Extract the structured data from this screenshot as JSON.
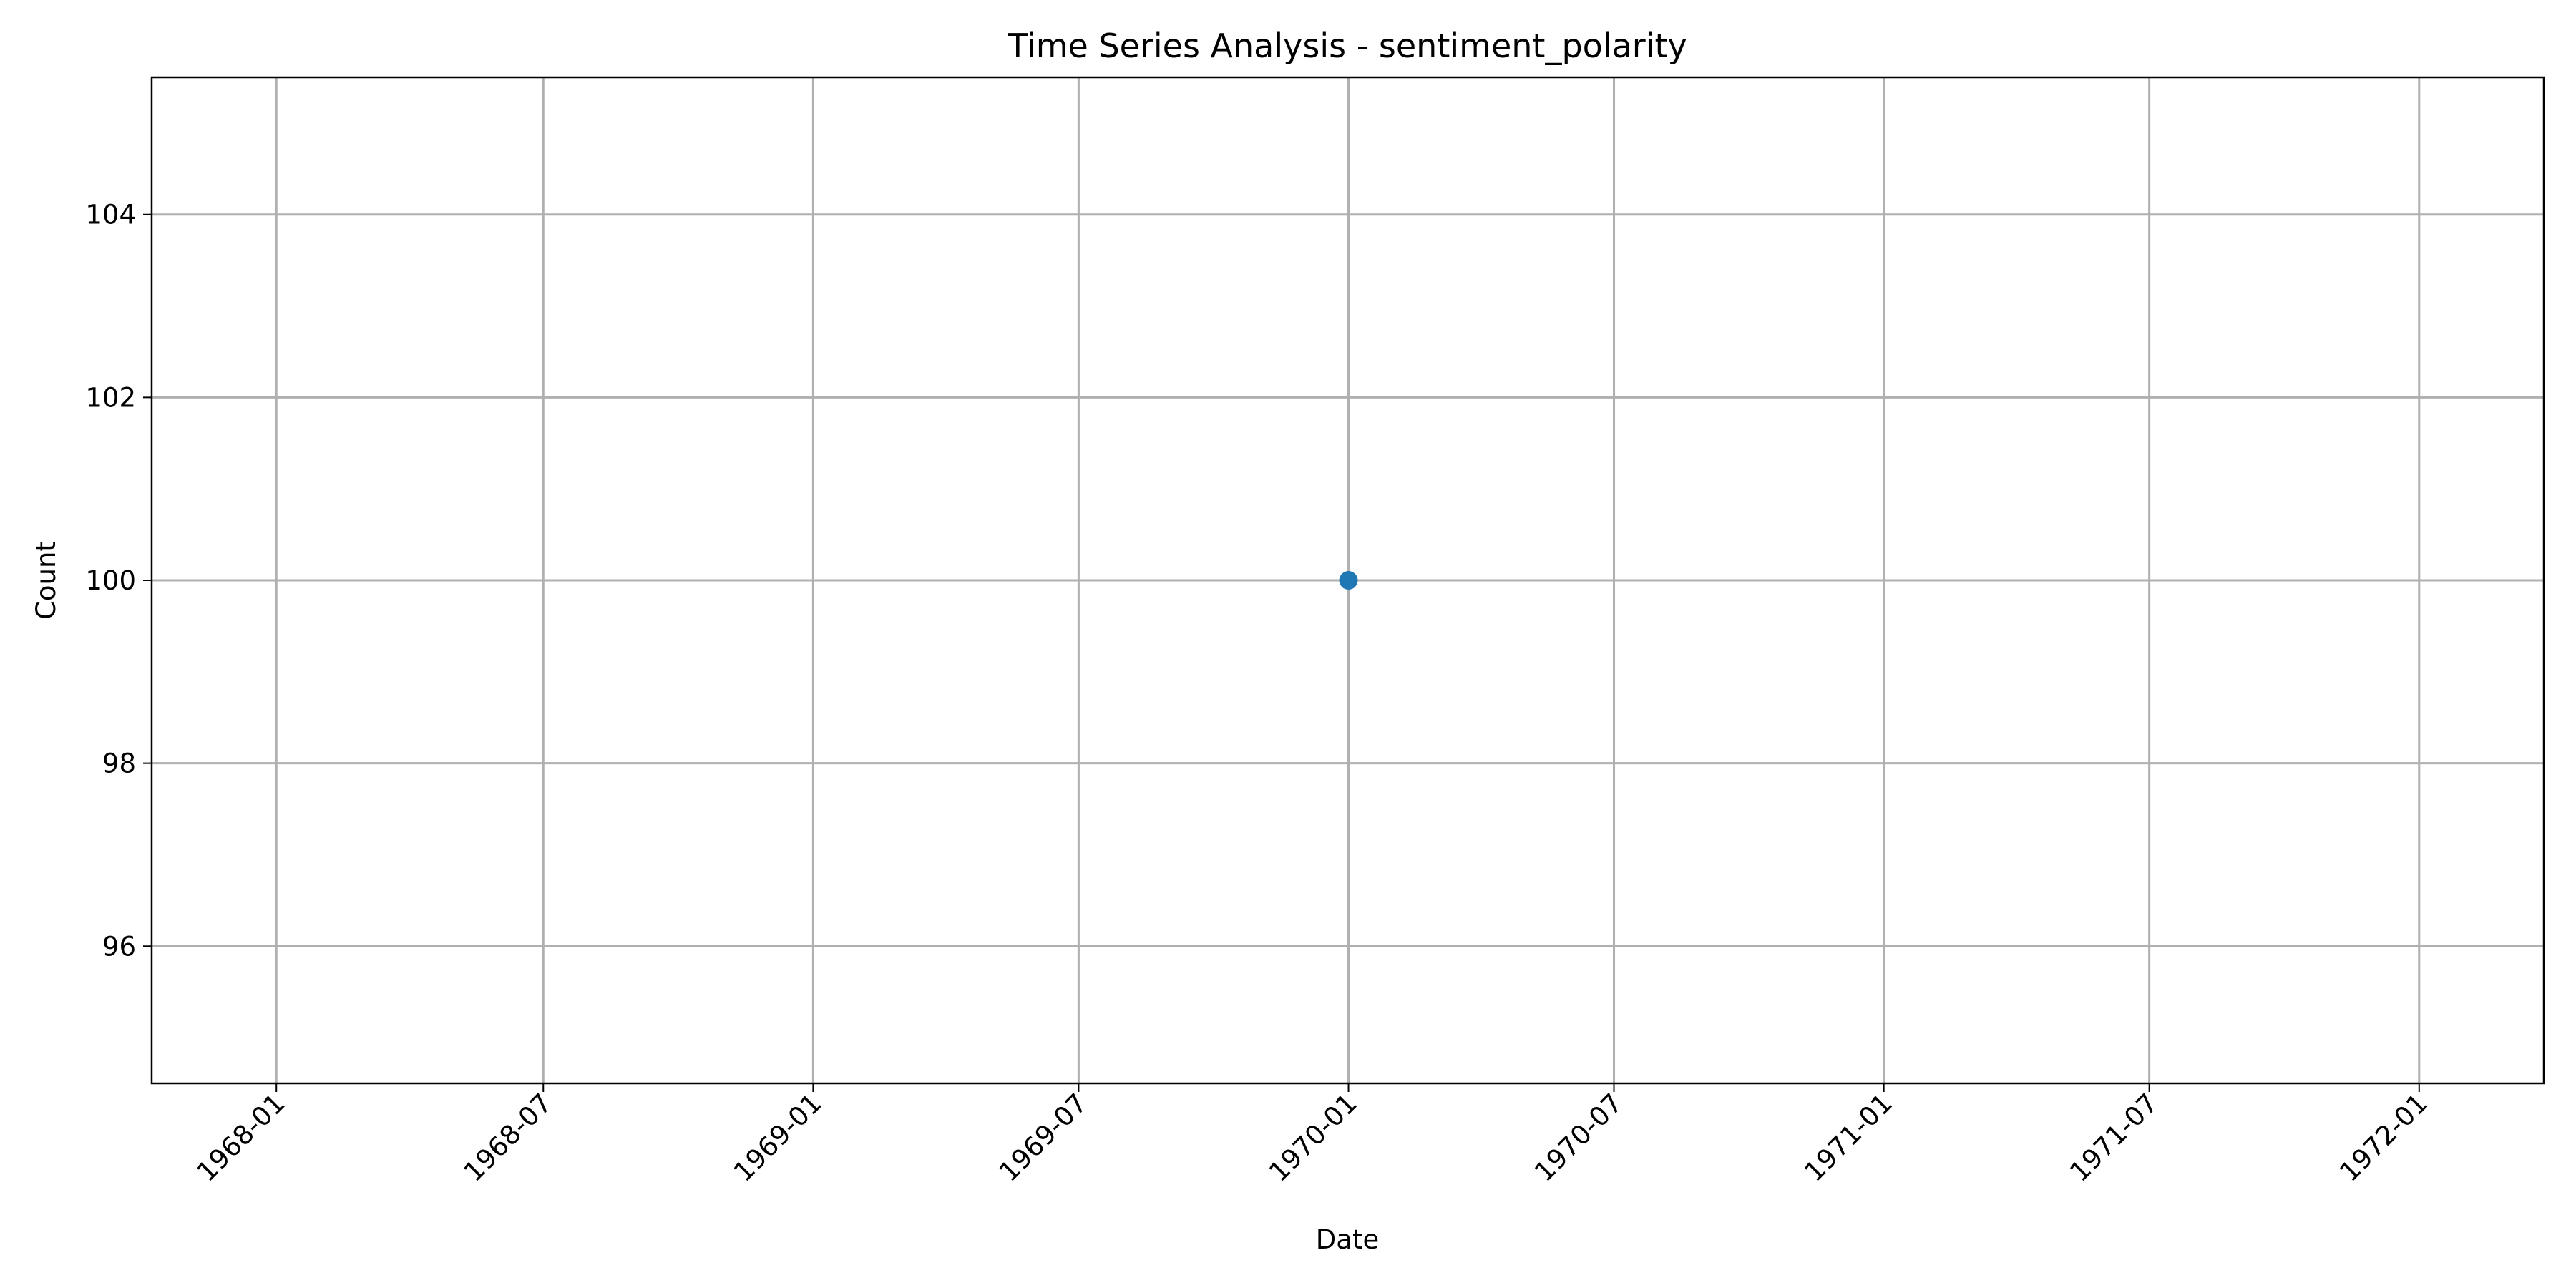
{
  "chart_data": {
    "type": "line",
    "title": "Time Series Analysis - sentiment_polarity",
    "xlabel": "Date",
    "ylabel": "Count",
    "x_ticks": [
      "1968-01",
      "1968-07",
      "1969-01",
      "1969-07",
      "1970-01",
      "1970-07",
      "1971-01",
      "1971-07",
      "1972-01"
    ],
    "y_ticks": [
      96,
      98,
      100,
      102,
      104
    ],
    "xlim": [
      "1967-10-08",
      "1972-03-26"
    ],
    "ylim": [
      94.5,
      105.5
    ],
    "grid": true,
    "marker": "circle",
    "series": [
      {
        "color": "#1f77b4",
        "points": [
          {
            "x": "1970-01-01",
            "y": 100
          }
        ]
      }
    ]
  }
}
